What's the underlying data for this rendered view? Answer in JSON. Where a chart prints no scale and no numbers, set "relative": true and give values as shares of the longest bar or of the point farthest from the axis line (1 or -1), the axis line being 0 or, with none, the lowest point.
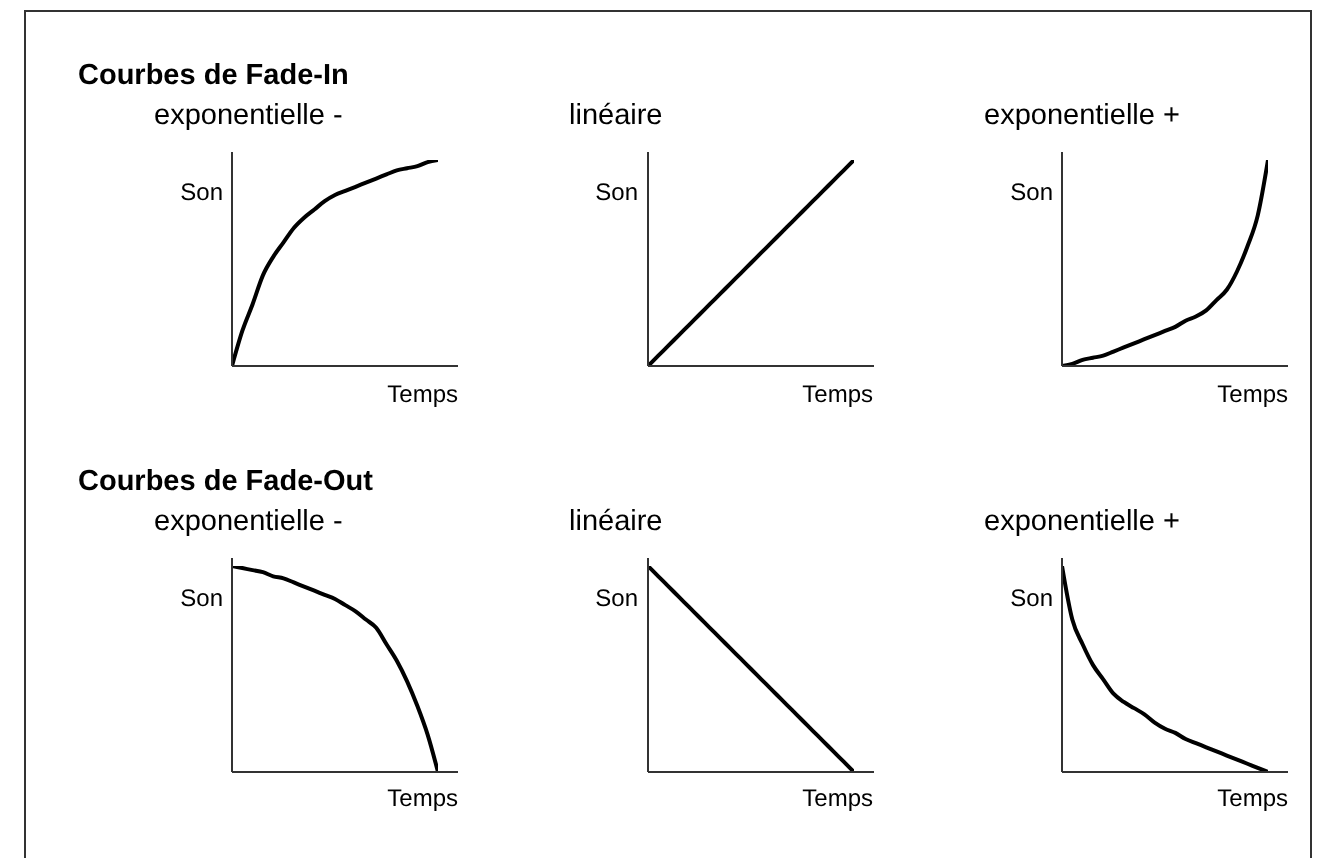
{
  "chart_data": [
    {
      "type": "line",
      "title": "Courbes de Fade-In",
      "subtitle": "exponentielle -",
      "xlabel": "Temps",
      "ylabel": "Son",
      "relative": true,
      "categories": [
        null,
        null,
        null,
        null,
        null,
        null,
        null,
        null,
        null,
        null,
        null,
        null,
        null,
        null,
        null,
        null,
        null,
        null,
        null,
        null,
        null
      ],
      "series": [
        {
          "color": "#000000",
          "values": [
            0,
            0.17,
            0.3,
            0.44,
            0.53,
            0.6,
            0.67,
            0.72,
            0.76,
            0.8,
            0.83,
            0.85,
            0.87,
            0.89,
            0.91,
            0.93,
            0.95,
            0.96,
            0.97,
            0.99,
            1
          ]
        }
      ]
    },
    {
      "type": "line",
      "subtitle": "linéaire",
      "xlabel": "Temps",
      "ylabel": "Son",
      "relative": true,
      "categories": [
        null,
        null,
        null,
        null,
        null,
        null,
        null,
        null,
        null,
        null,
        null,
        null,
        null,
        null,
        null,
        null,
        null,
        null,
        null,
        null,
        null
      ],
      "series": [
        {
          "color": "#000000",
          "values": [
            0,
            0.05,
            0.1,
            0.15,
            0.2,
            0.25,
            0.3,
            0.35,
            0.4,
            0.45,
            0.5,
            0.55,
            0.6,
            0.65,
            0.7,
            0.75,
            0.8,
            0.85,
            0.9,
            0.95,
            1
          ]
        }
      ]
    },
    {
      "type": "line",
      "subtitle": "exponentielle +",
      "xlabel": "Temps",
      "ylabel": "Son",
      "relative": true,
      "categories": [
        null,
        null,
        null,
        null,
        null,
        null,
        null,
        null,
        null,
        null,
        null,
        null,
        null,
        null,
        null,
        null,
        null,
        null,
        null,
        null,
        null
      ],
      "series": [
        {
          "color": "#000000",
          "values": [
            0,
            0.01,
            0.03,
            0.04,
            0.05,
            0.07,
            0.09,
            0.11,
            0.13,
            0.15,
            0.17,
            0.19,
            0.22,
            0.24,
            0.27,
            0.32,
            0.37,
            0.46,
            0.58,
            0.73,
            1
          ]
        }
      ]
    },
    {
      "type": "line",
      "title": "Courbes de Fade-Out",
      "subtitle": "exponentielle -",
      "xlabel": "Temps",
      "ylabel": "Son",
      "relative": true,
      "categories": [
        null,
        null,
        null,
        null,
        null,
        null,
        null,
        null,
        null,
        null,
        null,
        null,
        null,
        null,
        null,
        null,
        null,
        null,
        null,
        null,
        null
      ],
      "series": [
        {
          "color": "#000000",
          "values": [
            1,
            0.99,
            0.98,
            0.97,
            0.95,
            0.94,
            0.92,
            0.9,
            0.88,
            0.86,
            0.84,
            0.81,
            0.78,
            0.74,
            0.7,
            0.62,
            0.54,
            0.44,
            0.32,
            0.18,
            0
          ]
        }
      ]
    },
    {
      "type": "line",
      "subtitle": "linéaire",
      "xlabel": "Temps",
      "ylabel": "Son",
      "relative": true,
      "categories": [
        null,
        null,
        null,
        null,
        null,
        null,
        null,
        null,
        null,
        null,
        null,
        null,
        null,
        null,
        null,
        null,
        null,
        null,
        null,
        null,
        null
      ],
      "series": [
        {
          "color": "#000000",
          "values": [
            1,
            0.95,
            0.9,
            0.85,
            0.8,
            0.75,
            0.7,
            0.65,
            0.6,
            0.55,
            0.5,
            0.45,
            0.4,
            0.35,
            0.3,
            0.25,
            0.2,
            0.15,
            0.1,
            0.05,
            0
          ]
        }
      ]
    },
    {
      "type": "line",
      "subtitle": "exponentielle +",
      "xlabel": "Temps",
      "ylabel": "Son",
      "relative": true,
      "categories": [
        null,
        null,
        null,
        null,
        null,
        null,
        null,
        null,
        null,
        null,
        null,
        null,
        null,
        null,
        null,
        null,
        null,
        null,
        null,
        null,
        null
      ],
      "series": [
        {
          "color": "#000000",
          "values": [
            1,
            0.74,
            0.62,
            0.52,
            0.45,
            0.38,
            0.34,
            0.31,
            0.28,
            0.24,
            0.21,
            0.19,
            0.16,
            0.14,
            0.12,
            0.1,
            0.08,
            0.06,
            0.04,
            0.02,
            0
          ]
        }
      ]
    }
  ]
}
